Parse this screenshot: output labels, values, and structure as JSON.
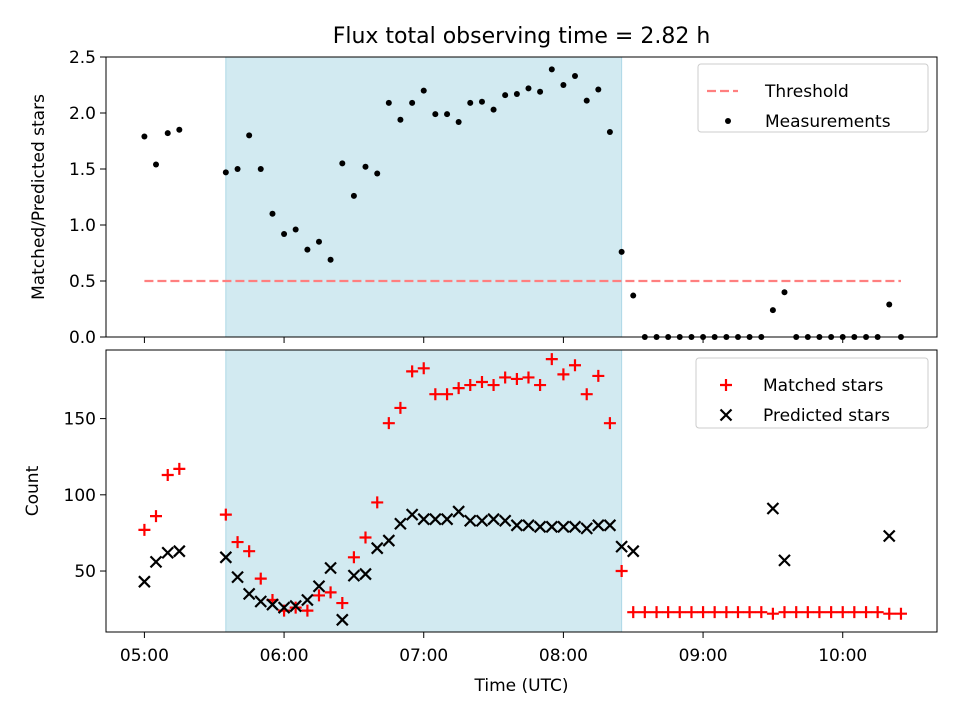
{
  "chart_data": [
    {
      "type": "scatter",
      "title": "Flux total observing time = 2.82 h",
      "ylabel": "Matched/Predicted stars",
      "xlabel": "",
      "ylim": [
        0,
        2.5
      ],
      "xlim_hours": [
        4.725,
        10.675
      ],
      "yticks": [
        0.0,
        0.5,
        1.0,
        1.5,
        2.0,
        2.5
      ],
      "ytick_labels": [
        "0.0",
        "0.5",
        "1.0",
        "1.5",
        "2.0",
        "2.5"
      ],
      "xticks_hours": [
        5,
        6,
        7,
        8,
        9,
        10
      ],
      "shaded_region_hours": [
        5.583,
        8.417
      ],
      "shaded_color": "#add8e6",
      "legend_position": "top-right",
      "series": [
        {
          "name": "Threshold",
          "kind": "dashed-line",
          "color": "#ff7f7f",
          "x": [
            5.0,
            10.417
          ],
          "y": [
            0.5,
            0.5
          ]
        },
        {
          "name": "Measurements",
          "kind": "dot",
          "color": "#000000",
          "x": [
            5.0,
            5.083,
            5.167,
            5.25,
            5.583,
            5.667,
            5.75,
            5.833,
            5.917,
            6.0,
            6.083,
            6.167,
            6.25,
            6.333,
            6.417,
            6.5,
            6.583,
            6.667,
            6.75,
            6.833,
            6.917,
            7.0,
            7.083,
            7.167,
            7.25,
            7.333,
            7.417,
            7.5,
            7.583,
            7.667,
            7.75,
            7.833,
            7.917,
            8.0,
            8.083,
            8.167,
            8.25,
            8.333,
            8.417,
            8.5,
            8.583,
            8.667,
            8.75,
            8.833,
            8.917,
            9.0,
            9.083,
            9.167,
            9.25,
            9.333,
            9.417,
            9.5,
            9.583,
            9.667,
            9.75,
            9.833,
            9.917,
            10.0,
            10.083,
            10.167,
            10.25,
            10.333,
            10.417
          ],
          "y": [
            1.79,
            1.54,
            1.82,
            1.85,
            1.47,
            1.5,
            1.8,
            1.5,
            1.1,
            0.92,
            0.96,
            0.78,
            0.85,
            0.69,
            1.55,
            1.26,
            1.52,
            1.46,
            2.09,
            1.94,
            2.09,
            2.2,
            1.99,
            1.99,
            1.92,
            2.09,
            2.1,
            2.03,
            2.16,
            2.17,
            2.22,
            2.19,
            2.39,
            2.25,
            2.33,
            2.11,
            2.21,
            1.83,
            0.76,
            0.37,
            0.0,
            0.0,
            0.0,
            0.0,
            0.0,
            0.0,
            0.0,
            0.0,
            0.0,
            0.0,
            0.0,
            0.24,
            0.4,
            0.0,
            0.0,
            0.0,
            0.0,
            0.0,
            0.0,
            0.0,
            0.0,
            0.29,
            0.0
          ]
        }
      ]
    },
    {
      "type": "scatter",
      "title": "",
      "ylabel": "Count",
      "xlabel": "Time (UTC)",
      "ylim": [
        10,
        195
      ],
      "xlim_hours": [
        4.725,
        10.675
      ],
      "yticks": [
        50,
        100,
        150
      ],
      "ytick_labels": [
        "50",
        "100",
        "150"
      ],
      "xticks_hours": [
        5,
        6,
        7,
        8,
        9,
        10
      ],
      "xtick_labels": [
        "05:00",
        "06:00",
        "07:00",
        "08:00",
        "09:00",
        "10:00"
      ],
      "shaded_region_hours": [
        5.583,
        8.417
      ],
      "shaded_color": "#add8e6",
      "legend_position": "top-right",
      "series": [
        {
          "name": "Matched stars",
          "kind": "plus",
          "color": "#ff0000",
          "x": [
            5.0,
            5.083,
            5.167,
            5.25,
            5.583,
            5.667,
            5.75,
            5.833,
            5.917,
            6.0,
            6.083,
            6.167,
            6.25,
            6.333,
            6.417,
            6.5,
            6.583,
            6.667,
            6.75,
            6.833,
            6.917,
            7.0,
            7.083,
            7.167,
            7.25,
            7.333,
            7.417,
            7.5,
            7.583,
            7.667,
            7.75,
            7.833,
            7.917,
            8.0,
            8.083,
            8.167,
            8.25,
            8.333,
            8.417,
            8.5,
            8.583,
            8.667,
            8.75,
            8.833,
            8.917,
            9.0,
            9.083,
            9.167,
            9.25,
            9.333,
            9.417,
            9.5,
            9.583,
            9.667,
            9.75,
            9.833,
            9.917,
            10.0,
            10.083,
            10.167,
            10.25,
            10.333,
            10.417
          ],
          "y": [
            77,
            86,
            113,
            117,
            87,
            69,
            63,
            45,
            31,
            24,
            26,
            24,
            34,
            36,
            29,
            59,
            72,
            95,
            147,
            157,
            181,
            183,
            166,
            166,
            170,
            172,
            174,
            172,
            177,
            176,
            177,
            172,
            189,
            179,
            185,
            166,
            178,
            147,
            50,
            23,
            23,
            23,
            23,
            23,
            23,
            23,
            23,
            23,
            23,
            23,
            23,
            22,
            23,
            23,
            23,
            23,
            23,
            23,
            23,
            23,
            23,
            22,
            22
          ]
        },
        {
          "name": "Predicted stars",
          "kind": "cross",
          "color": "#000000",
          "x": [
            5.0,
            5.083,
            5.167,
            5.25,
            5.583,
            5.667,
            5.75,
            5.833,
            5.917,
            6.0,
            6.083,
            6.167,
            6.25,
            6.333,
            6.417,
            6.5,
            6.583,
            6.667,
            6.75,
            6.833,
            6.917,
            7.0,
            7.083,
            7.167,
            7.25,
            7.333,
            7.417,
            7.5,
            7.583,
            7.667,
            7.75,
            7.833,
            7.917,
            8.0,
            8.083,
            8.167,
            8.25,
            8.333,
            8.417,
            8.5,
            9.5,
            9.583,
            10.333
          ],
          "y": [
            43,
            56,
            62,
            63,
            59,
            46,
            35,
            30,
            28,
            26,
            27,
            31,
            40,
            52,
            18,
            47,
            48,
            65,
            70,
            81,
            87,
            84,
            84,
            84,
            89,
            83,
            83,
            84,
            83,
            80,
            80,
            79,
            79,
            79,
            79,
            78,
            80,
            80,
            66,
            63,
            91,
            57,
            73
          ]
        }
      ]
    }
  ]
}
